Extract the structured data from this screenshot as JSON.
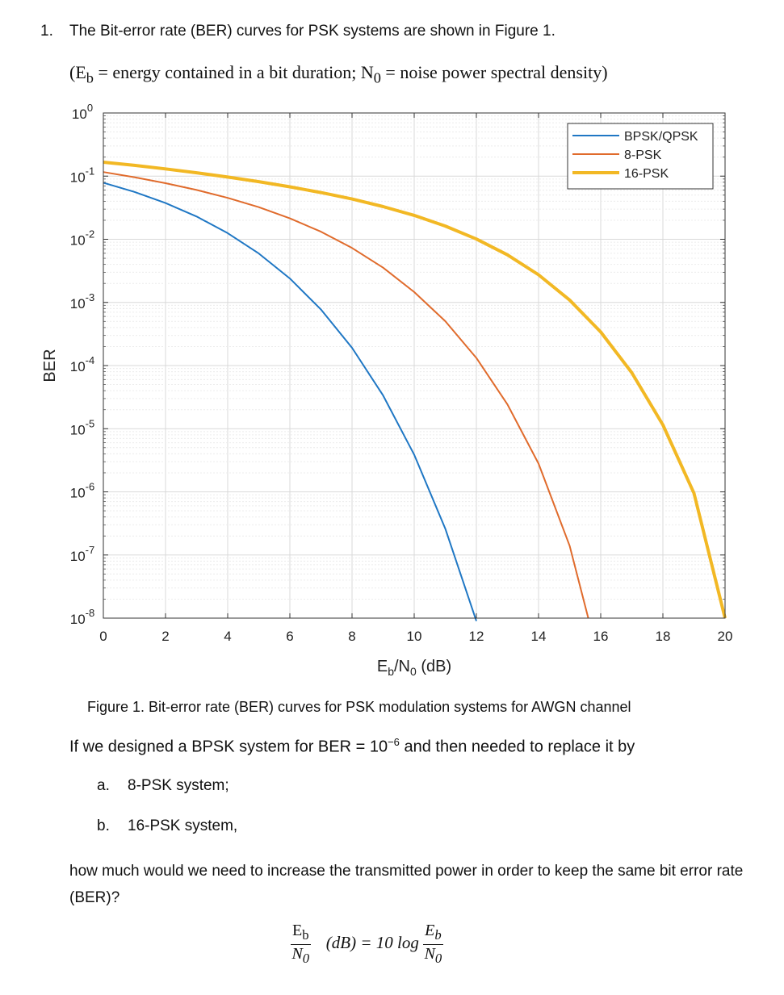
{
  "question": {
    "number": "1.",
    "text": "The Bit-error rate (BER) curves for PSK systems are shown in Figure 1.",
    "definitions": "(Eb = energy contained in a bit duration; No = noise power spectral density)",
    "def_part1": "(E",
    "def_sub1": "b",
    "def_part2": " = energy contained in a bit duration; N",
    "def_sub2": "0",
    "def_part3": " = noise power spectral density)"
  },
  "figure": {
    "caption": "Figure 1. Bit-error rate (BER) curves for PSK modulation systems for AWGN channel"
  },
  "chart_data": {
    "type": "line",
    "title": "",
    "xlabel": "Eb/No (dB)",
    "xlabel_main": "E",
    "xlabel_sub1": "b",
    "xlabel_mid": "/N",
    "xlabel_sub2": "0",
    "xlabel_tail": " (dB)",
    "ylabel": "BER",
    "xlim": [
      0,
      20
    ],
    "ylim": [
      1e-08,
      1
    ],
    "yscale": "log",
    "grid": true,
    "legend_position": "top-right",
    "xticks": [
      "0",
      "2",
      "4",
      "6",
      "8",
      "10",
      "12",
      "14",
      "16",
      "18",
      "20"
    ],
    "yticks": [
      {
        "base": "10",
        "exp": "0"
      },
      {
        "base": "10",
        "exp": "-1"
      },
      {
        "base": "10",
        "exp": "-2"
      },
      {
        "base": "10",
        "exp": "-3"
      },
      {
        "base": "10",
        "exp": "-4"
      },
      {
        "base": "10",
        "exp": "-5"
      },
      {
        "base": "10",
        "exp": "-6"
      },
      {
        "base": "10",
        "exp": "-7"
      },
      {
        "base": "10",
        "exp": "-8"
      }
    ],
    "series": [
      {
        "name": "BPSK/QPSK",
        "color": "#1f77c4",
        "width": 2,
        "x": [
          0,
          1,
          2,
          3,
          4,
          5,
          6,
          7,
          8,
          9,
          10,
          11,
          12
        ],
        "y": [
          0.0786,
          0.0563,
          0.0375,
          0.0229,
          0.0125,
          0.00595,
          0.00239,
          0.000773,
          0.000191,
          3.36e-05,
          3.87e-06,
          2.61e-07,
          9e-09
        ]
      },
      {
        "name": "8-PSK",
        "color": "#e06b2c",
        "width": 2,
        "x": [
          0,
          1,
          2,
          3,
          4,
          5,
          6,
          7,
          8,
          9,
          10,
          11,
          12,
          13,
          14,
          15,
          15.6
        ],
        "y": [
          0.116,
          0.0962,
          0.0774,
          0.0604,
          0.0453,
          0.0323,
          0.0214,
          0.0132,
          0.00727,
          0.00355,
          0.00146,
          0.000505,
          0.000132,
          2.42e-05,
          2.8e-06,
          1.4e-07,
          1e-08
        ]
      },
      {
        "name": "16-PSK",
        "color": "#f2b824",
        "width": 4,
        "x": [
          0,
          1,
          2,
          3,
          4,
          5,
          6,
          7,
          8,
          9,
          10,
          11,
          12,
          13,
          14,
          15,
          16,
          17,
          18,
          19,
          20
        ],
        "y": [
          0.166,
          0.148,
          0.13,
          0.113,
          0.0968,
          0.0817,
          0.0677,
          0.0549,
          0.0434,
          0.0329,
          0.0239,
          0.0162,
          0.0101,
          0.00566,
          0.00274,
          0.00109,
          0.00034,
          7.7e-05,
          1.15e-05,
          9.5e-07,
          1e-08
        ]
      }
    ]
  },
  "prompt": {
    "question_pre": "If we designed a BPSK system for BER = 10",
    "question_exp": "−6",
    "question_post": " and then needed to replace it by",
    "option_a_label": "a.",
    "option_a_text": "8-PSK system;",
    "option_b_label": "b.",
    "option_b_text": "16-PSK system,",
    "closing": "how much would we need to increase the transmitted power in order to keep the same bit error rate (BER)?"
  },
  "formula": {
    "lhs_num": "E",
    "lhs_num_sub": "b",
    "lhs_den": "N",
    "lhs_den_sub": "0",
    "middle": "(dB) = 10 log",
    "rhs_num": "E",
    "rhs_num_sub": "b",
    "rhs_den": "N",
    "rhs_den_sub": "0"
  }
}
